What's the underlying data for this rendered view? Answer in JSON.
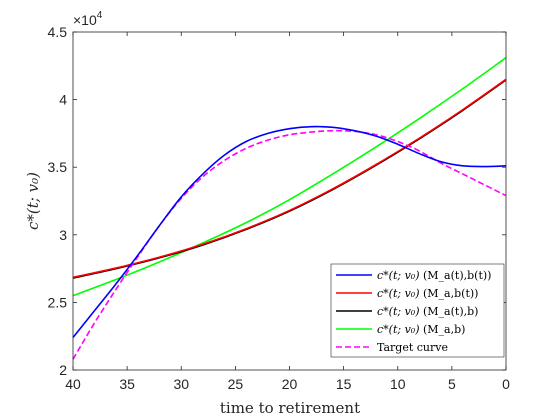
{
  "chart_data": {
    "type": "line",
    "title": "",
    "xlabel": "time to retirement",
    "ylabel": "c*(t; v₀)",
    "xlim": [
      40,
      0
    ],
    "ylim": [
      20000,
      45000
    ],
    "x_ticks": [
      40,
      35,
      30,
      25,
      20,
      15,
      10,
      5,
      0
    ],
    "x_tick_labels": [
      "40",
      "35",
      "30",
      "25",
      "20",
      "15",
      "10",
      "5",
      "0"
    ],
    "y_ticks": [
      20000,
      25000,
      30000,
      35000,
      40000,
      45000
    ],
    "y_tick_labels": [
      "2",
      "2.5",
      "3",
      "3.5",
      "4",
      "4.5"
    ],
    "y_multiplier_base": "×10",
    "y_multiplier_exp": "4",
    "grid": false,
    "legend_position": "bottom-right",
    "series": [
      {
        "name": "c*(t; v₀) (M_a(t),b(t))",
        "color": "#0000ff",
        "dash": "solid",
        "x": [
          40,
          38,
          36,
          34,
          32,
          30,
          28,
          26,
          24,
          22,
          20,
          18,
          16,
          14,
          12,
          10,
          8,
          6,
          4,
          2,
          0
        ],
        "y": [
          22400,
          24400,
          26400,
          28500,
          30700,
          32800,
          34500,
          35900,
          36900,
          37500,
          37850,
          38000,
          37950,
          37700,
          37300,
          36700,
          36000,
          35400,
          35100,
          35050,
          35100
        ]
      },
      {
        "name": "c*(t; v₀) (M_a,b(t))",
        "color": "#ff0000",
        "dash": "solid",
        "x": [
          40,
          36,
          32,
          28,
          24,
          20,
          16,
          12,
          8,
          4,
          0
        ],
        "y": [
          26850,
          27550,
          28350,
          29300,
          30450,
          31800,
          33400,
          35200,
          37150,
          39250,
          41500
        ]
      },
      {
        "name": "c*(t; v₀) (M_a(t),b)",
        "color": "#000000",
        "dash": "solid",
        "x": [
          40,
          36,
          32,
          28,
          24,
          20,
          16,
          12,
          8,
          4,
          0
        ],
        "y": [
          26800,
          27500,
          28300,
          29250,
          30400,
          31750,
          33350,
          35150,
          37100,
          39200,
          41450
        ]
      },
      {
        "name": "c*(t; v₀) (M_a,b)",
        "color": "#00ff00",
        "dash": "solid",
        "x": [
          40,
          36,
          32,
          28,
          24,
          20,
          16,
          12,
          8,
          4,
          0
        ],
        "y": [
          25500,
          26700,
          28000,
          29400,
          30900,
          32600,
          34500,
          36500,
          38600,
          40800,
          43100
        ]
      },
      {
        "name": "Target curve",
        "color": "#ff00ff",
        "dash": "dashed",
        "x": [
          40,
          38,
          36,
          34,
          32,
          30,
          28,
          26,
          24,
          22,
          20,
          18,
          16,
          14,
          12,
          10,
          8,
          6,
          4,
          2,
          0
        ],
        "y": [
          20800,
          23500,
          26000,
          28400,
          30700,
          32700,
          34300,
          35500,
          36400,
          37000,
          37400,
          37600,
          37700,
          37650,
          37400,
          36900,
          36200,
          35300,
          34500,
          33700,
          32900
        ]
      }
    ]
  },
  "legend_items": [
    {
      "prefix": "c*(t; v₀)",
      "suffix": "(M_a(t),b(t))"
    },
    {
      "prefix": "c*(t; v₀)",
      "suffix": "(M_a,b(t))"
    },
    {
      "prefix": "c*(t; v₀)",
      "suffix": "(M_a(t),b)"
    },
    {
      "prefix": "c*(t; v₀)",
      "suffix": "(M_a,b)"
    },
    {
      "prefix": "",
      "suffix": "Target curve"
    }
  ]
}
